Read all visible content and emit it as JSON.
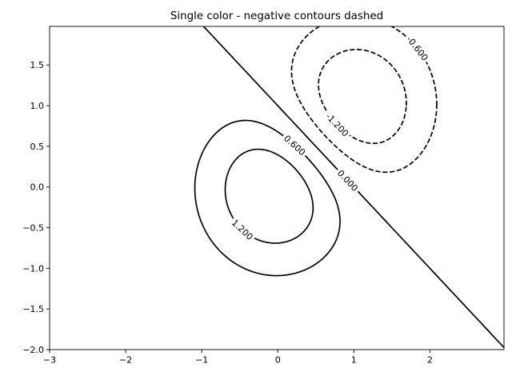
{
  "figure": {
    "background_color": "#ffffff",
    "axes_edge_color": "#000000"
  },
  "chart_data": {
    "type": "contour",
    "title": "Single color - negative contours dashed",
    "line_color": "#000000",
    "positive_linestyle": "solid",
    "negative_linestyle": "dashed",
    "grid": false,
    "legend": "none",
    "xlim": [
      -3,
      2.975
    ],
    "ylim": [
      -2,
      1.975
    ],
    "xticks": [
      {
        "value": -3,
        "label": "−3"
      },
      {
        "value": -2,
        "label": "−2"
      },
      {
        "value": -1,
        "label": "−1"
      },
      {
        "value": 0,
        "label": "0"
      },
      {
        "value": 1,
        "label": "1"
      },
      {
        "value": 2,
        "label": "2"
      }
    ],
    "yticks": [
      {
        "value": -2.0,
        "label": "−2.0"
      },
      {
        "value": -1.5,
        "label": "−1.5"
      },
      {
        "value": -1.0,
        "label": "−1.0"
      },
      {
        "value": -0.5,
        "label": "−0.5"
      },
      {
        "value": 0.0,
        "label": "0.0"
      },
      {
        "value": 0.5,
        "label": "0.5"
      },
      {
        "value": 1.0,
        "label": "1.0"
      },
      {
        "value": 1.5,
        "label": "1.5"
      }
    ],
    "levels": [
      -1.2,
      -0.6,
      0,
      0.6,
      1.2
    ],
    "field": {
      "formula": "Z = 2*exp(-x^2 - y^2) - 2*exp(-((x-1)^2 + (y-1)^2))",
      "gaussians": [
        {
          "amplitude": 2,
          "cx": 0,
          "cy": 0
        },
        {
          "amplitude": -2,
          "cx": 1,
          "cy": 1
        }
      ]
    },
    "zero_line": {
      "p1": [
        -0.975,
        1.975
      ],
      "p2": [
        2.975,
        -1.975
      ]
    },
    "contour_labels": [
      {
        "text": "1.200",
        "level": 1.2,
        "x": -0.5,
        "y": -0.56
      },
      {
        "text": "0.600",
        "level": 0.6,
        "x": 0.22,
        "y": 0.5
      },
      {
        "text": "0.000",
        "level": 0,
        "x": 0.93,
        "y": 0.07
      },
      {
        "text": "-0.600",
        "level": -0.6,
        "x": 1.86,
        "y": 1.72
      },
      {
        "text": "-1.200",
        "level": -1.2,
        "x": 0.8,
        "y": 0.78
      }
    ]
  }
}
